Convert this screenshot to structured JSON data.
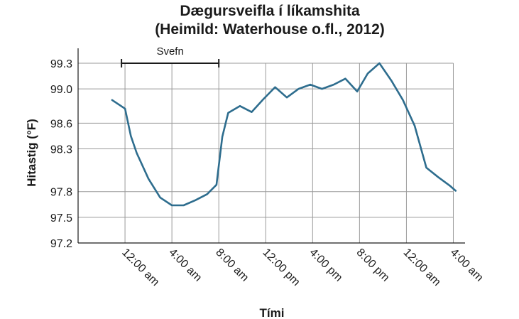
{
  "chart_data": {
    "type": "line",
    "title": "Dægursveifla í líkamshita",
    "subtitle": "(Heimild: Waterhouse o.fl., 2012)",
    "xlabel": "Tími",
    "ylabel": "Hitastig (°F)",
    "ylim": [
      97.2,
      99.3
    ],
    "yticks": [
      97.2,
      97.5,
      97.8,
      98.3,
      98.6,
      99.0,
      99.3
    ],
    "xticks": [
      {
        "hour": 24,
        "label": "12:00 am"
      },
      {
        "hour": 28,
        "label": "4:00 am"
      },
      {
        "hour": 32,
        "label": "8:00 am"
      },
      {
        "hour": 36,
        "label": "12:00 pm"
      },
      {
        "hour": 40,
        "label": "4:00 pm"
      },
      {
        "hour": 44,
        "label": "8:00 pm"
      },
      {
        "hour": 48,
        "label": "12:00 am"
      },
      {
        "hour": 52,
        "label": "4:00 am"
      }
    ],
    "xlim": [
      20,
      53
    ],
    "grid": true,
    "series": [
      {
        "color": "#2e6d8e",
        "x": [
          22.9,
          24.0,
          24.5,
          25.0,
          26.0,
          27.0,
          28.0,
          29.0,
          30.0,
          31.0,
          31.8,
          32.3,
          32.8,
          33.8,
          34.8,
          35.8,
          36.8,
          37.8,
          38.8,
          39.8,
          40.8,
          41.8,
          42.8,
          43.8,
          44.7,
          45.7,
          46.7,
          47.7,
          48.7,
          49.7,
          50.7,
          51.7,
          52.2
        ],
        "values": [
          98.87,
          98.77,
          98.45,
          98.25,
          97.95,
          97.73,
          97.64,
          97.64,
          97.7,
          97.77,
          97.88,
          98.44,
          98.72,
          98.8,
          98.73,
          98.88,
          99.02,
          98.9,
          99.0,
          99.05,
          99.0,
          99.05,
          99.12,
          98.97,
          99.18,
          99.3,
          99.1,
          98.87,
          98.57,
          98.08,
          97.97,
          97.87,
          97.81
        ]
      }
    ],
    "annotations": [
      {
        "label": "Svefn",
        "x_start": 23.7,
        "x_end": 32.0,
        "y": 99.3
      }
    ]
  }
}
